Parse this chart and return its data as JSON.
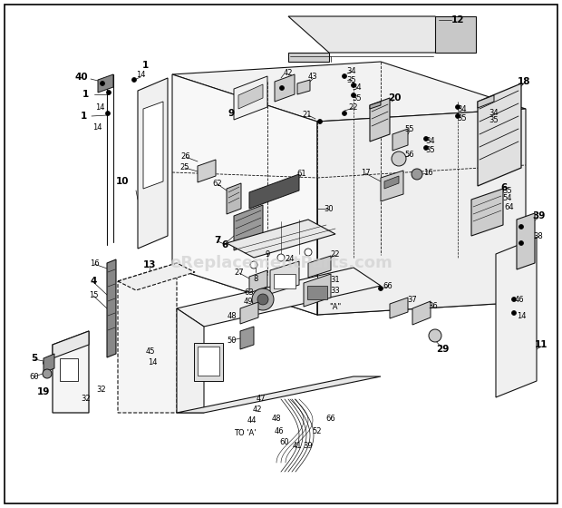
{
  "background_color": "#ffffff",
  "watermark_text": "eReplacementParts.com",
  "watermark_color": "#d0d0d0",
  "watermark_fontsize": 13,
  "fig_width": 6.2,
  "fig_height": 5.6,
  "dpi": 100,
  "line_color": "#111111",
  "line_width": 0.7,
  "label_fontsize": 6.0,
  "bold_label_fontsize": 7.5,
  "border_lw": 1.2
}
